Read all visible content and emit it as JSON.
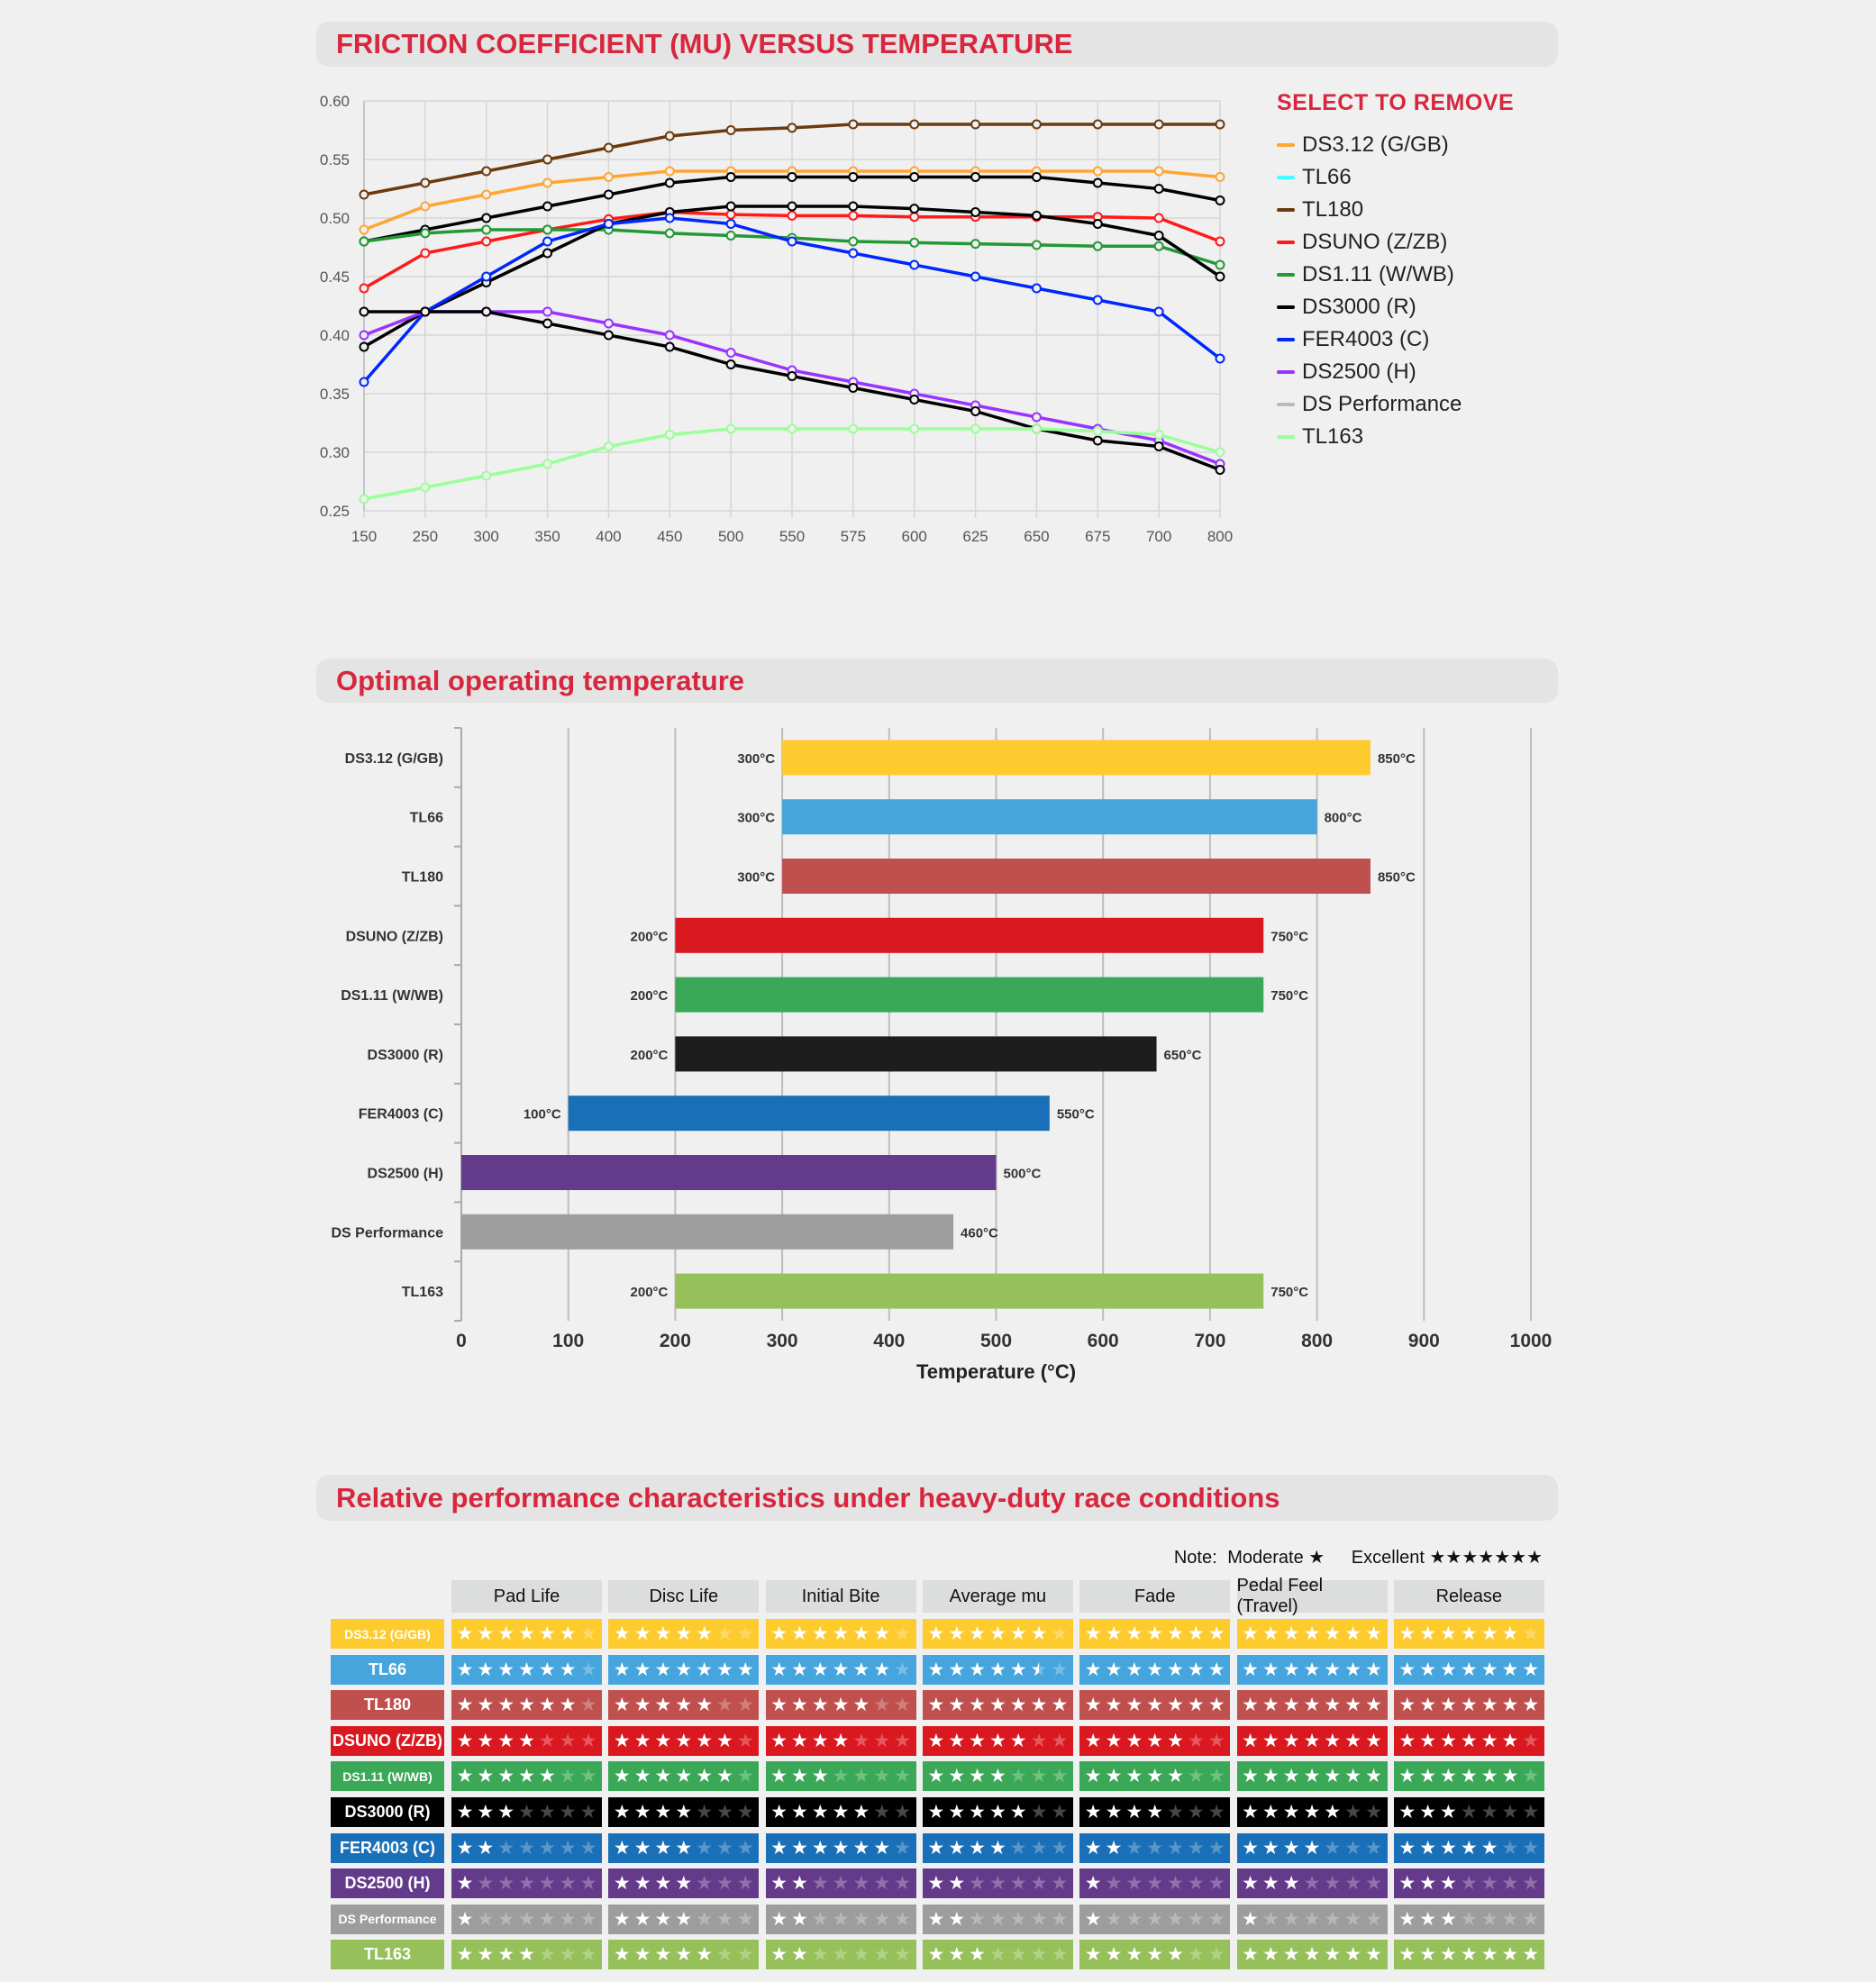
{
  "sections": {
    "friction_title": "FRICTION COEFFICIENT (MU) VERSUS TEMPERATURE",
    "optimal_title": "Optimal operating temperature",
    "performance_title": "Relative performance characteristics under heavy-duty race conditions"
  },
  "legend": {
    "title": "SELECT TO REMOVE",
    "items": [
      {
        "label": "DS3.12 (G/GB)",
        "color": "#ffa532"
      },
      {
        "label": "TL66",
        "color": "#44ffff"
      },
      {
        "label": "TL180",
        "color": "#6b3a0e"
      },
      {
        "label": "DSUNO (Z/ZB)",
        "color": "#ff1a1a"
      },
      {
        "label": "DS1.11 (W/WB)",
        "color": "#229933"
      },
      {
        "label": "DS3000 (R)",
        "color": "#000000"
      },
      {
        "label": "FER4003 (C)",
        "color": "#0026ff"
      },
      {
        "label": "DS2500 (H)",
        "color": "#9933ff"
      },
      {
        "label": "DS Performance",
        "color": "#bbbbbb"
      },
      {
        "label": "TL163",
        "color": "#99ff99"
      }
    ]
  },
  "chart_data": [
    {
      "type": "line",
      "title": "FRICTION COEFFICIENT (MU) VERSUS TEMPERATURE",
      "x": [
        150,
        250,
        300,
        350,
        400,
        450,
        500,
        550,
        575,
        600,
        625,
        650,
        675,
        700,
        800
      ],
      "ylim": [
        0.25,
        0.6
      ],
      "yticks": [
        "0.60",
        "0.55",
        "0.50",
        "0.45",
        "0.40",
        "0.35",
        "0.30",
        "0.25"
      ],
      "grid": true,
      "legend_position": "right",
      "series": [
        {
          "name": "DS3.12 (G/GB)",
          "line_color": "#ffa532",
          "values": [
            0.49,
            0.51,
            0.52,
            0.53,
            0.535,
            0.54,
            0.54,
            0.54,
            0.54,
            0.54,
            0.54,
            0.54,
            0.54,
            0.54,
            0.535
          ]
        },
        {
          "name": "TL66",
          "line_color": "#000000",
          "values": [
            0.48,
            0.49,
            0.5,
            0.51,
            0.52,
            0.53,
            0.535,
            0.535,
            0.535,
            0.535,
            0.535,
            0.535,
            0.53,
            0.525,
            0.515
          ]
        },
        {
          "name": "TL180",
          "line_color": "#6b3a0e",
          "values": [
            0.52,
            0.53,
            0.54,
            0.55,
            0.56,
            0.57,
            0.575,
            0.577,
            0.58,
            0.58,
            0.58,
            0.58,
            0.58,
            0.58,
            0.58
          ]
        },
        {
          "name": "DSUNO (Z/ZB)",
          "line_color": "#ff1a1a",
          "values": [
            0.44,
            0.47,
            0.48,
            0.49,
            0.499,
            0.505,
            0.503,
            0.502,
            0.502,
            0.501,
            0.501,
            0.501,
            0.501,
            0.5,
            0.48
          ]
        },
        {
          "name": "DS1.11 (W/WB)",
          "line_color": "#229933",
          "values": [
            0.48,
            0.487,
            0.49,
            0.49,
            0.49,
            0.487,
            0.485,
            0.483,
            0.48,
            0.479,
            0.478,
            0.477,
            0.476,
            0.476,
            0.46
          ]
        },
        {
          "name": "DS3000 (R)",
          "line_color": "#000000",
          "values": [
            0.39,
            0.42,
            0.445,
            0.47,
            0.495,
            0.505,
            0.51,
            0.51,
            0.51,
            0.508,
            0.505,
            0.502,
            0.495,
            0.485,
            0.45
          ]
        },
        {
          "name": "FER4003 (C)",
          "line_color": "#0026ff",
          "values": [
            0.36,
            0.42,
            0.45,
            0.48,
            0.495,
            0.5,
            0.495,
            0.48,
            0.47,
            0.46,
            0.45,
            0.44,
            0.43,
            0.42,
            0.38
          ]
        },
        {
          "name": "DS2500 (H)",
          "line_color": "#9933ff",
          "values": [
            0.4,
            0.42,
            0.42,
            0.42,
            0.41,
            0.4,
            0.385,
            0.37,
            0.36,
            0.35,
            0.34,
            0.33,
            0.32,
            0.31,
            0.29
          ]
        },
        {
          "name": "DS Performance",
          "line_color": "#000000",
          "values": [
            0.42,
            0.42,
            0.42,
            0.41,
            0.4,
            0.39,
            0.375,
            0.365,
            0.355,
            0.345,
            0.335,
            0.32,
            0.31,
            0.305,
            0.285
          ]
        },
        {
          "name": "TL163",
          "line_color": "#99ff99",
          "values": [
            0.26,
            0.27,
            0.28,
            0.29,
            0.305,
            0.315,
            0.32,
            0.32,
            0.32,
            0.32,
            0.32,
            0.32,
            0.318,
            0.315,
            0.3
          ]
        }
      ]
    },
    {
      "type": "bar",
      "orientation": "horizontal-range",
      "title": "Optimal operating temperature",
      "xlabel": "Temperature (°C)",
      "xlim": [
        0,
        1000
      ],
      "xticks": [
        "0",
        "100",
        "200",
        "300",
        "400",
        "500",
        "600",
        "700",
        "800",
        "900",
        "1000"
      ],
      "grid": true,
      "categories": [
        "DS3.12 (G/GB)",
        "TL66",
        "TL180",
        "DSUNO (Z/ZB)",
        "DS1.11 (W/WB)",
        "DS3000 (R)",
        "FER4003 (C)",
        "DS2500 (H)",
        "DS Performance",
        "TL163"
      ],
      "start": [
        300,
        300,
        300,
        200,
        200,
        200,
        100,
        0,
        0,
        200
      ],
      "end": [
        850,
        800,
        850,
        750,
        750,
        650,
        550,
        500,
        460,
        750
      ],
      "start_labels": [
        "300°C",
        "300°C",
        "300°C",
        "200°C",
        "200°C",
        "200°C",
        "100°C",
        "",
        "",
        "200°C"
      ],
      "end_labels": [
        "850°C",
        "800°C",
        "850°C",
        "750°C",
        "750°C",
        "650°C",
        "550°C",
        "500°C",
        "460°C",
        "750°C"
      ],
      "colors": [
        "#fecb2f",
        "#45a5dc",
        "#c0504d",
        "#da1820",
        "#3aa856",
        "#1d1d1d",
        "#1a70b8",
        "#643b8b",
        "#9d9d9d",
        "#96c05a"
      ]
    },
    {
      "type": "table",
      "title": "Relative performance characteristics under heavy-duty race conditions",
      "max_stars": 7,
      "columns": [
        "Pad Life",
        "Disc Life",
        "Initial Bite",
        "Average mu",
        "Fade",
        "Pedal Feel (Travel)",
        "Release"
      ],
      "rows": [
        {
          "label": "DS3.12 (G/GB)",
          "color": "#fecb2f",
          "ratings": [
            6,
            5,
            6,
            6,
            7,
            7,
            6
          ]
        },
        {
          "label": "TL66",
          "color": "#45a5dc",
          "ratings": [
            6,
            7,
            6,
            5.5,
            7,
            7,
            7
          ]
        },
        {
          "label": "TL180",
          "color": "#c0504d",
          "ratings": [
            6,
            5,
            5,
            7,
            7,
            7,
            7
          ]
        },
        {
          "label": "DSUNO (Z/ZB)",
          "color": "#da1820",
          "ratings": [
            4,
            6,
            4,
            5,
            5,
            7,
            6
          ]
        },
        {
          "label": "DS1.11 (W/WB)",
          "color": "#3aa856",
          "ratings": [
            5,
            6,
            3,
            4,
            5,
            7,
            6
          ]
        },
        {
          "label": "DS3000 (R)",
          "color": "#000000",
          "ratings": [
            3,
            4,
            5,
            5,
            4,
            5,
            3
          ]
        },
        {
          "label": "FER4003 (C)",
          "color": "#1a70b8",
          "ratings": [
            2,
            4,
            6,
            4,
            2,
            4,
            5
          ]
        },
        {
          "label": "DS2500 (H)",
          "color": "#643b8b",
          "ratings": [
            1,
            4,
            2,
            2,
            1,
            3,
            3
          ]
        },
        {
          "label": "DS Performance",
          "color": "#9d9d9d",
          "ratings": [
            1,
            4,
            2,
            2,
            1,
            1,
            3
          ]
        },
        {
          "label": "TL163",
          "color": "#96c05a",
          "ratings": [
            4,
            5,
            2,
            3,
            5,
            7,
            7
          ]
        }
      ]
    }
  ],
  "note": {
    "label": "Note:",
    "moderate": "Moderate ★",
    "excellent": "Excellent ★★★★★★★"
  }
}
